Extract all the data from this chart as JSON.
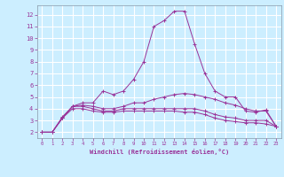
{
  "xlabel": "Windchill (Refroidissement éolien,°C)",
  "background_color": "#cceeff",
  "grid_color": "#aadddd",
  "line_color": "#993399",
  "xlim": [
    -0.5,
    23.5
  ],
  "ylim": [
    1.5,
    12.8
  ],
  "xticks": [
    0,
    1,
    2,
    3,
    4,
    5,
    6,
    7,
    8,
    9,
    10,
    11,
    12,
    13,
    14,
    15,
    16,
    17,
    18,
    19,
    20,
    21,
    22,
    23
  ],
  "yticks": [
    2,
    3,
    4,
    5,
    6,
    7,
    8,
    9,
    10,
    11,
    12
  ],
  "series": [
    [
      2.0,
      2.0,
      3.2,
      4.2,
      4.5,
      4.5,
      5.5,
      5.2,
      5.5,
      6.5,
      8.0,
      11.0,
      11.5,
      12.3,
      12.3,
      9.5,
      7.0,
      5.5,
      5.0,
      5.0,
      3.8,
      3.7,
      3.9,
      2.5
    ],
    [
      2.0,
      2.0,
      3.2,
      4.2,
      4.3,
      4.2,
      4.0,
      4.0,
      4.2,
      4.5,
      4.5,
      4.8,
      5.0,
      5.2,
      5.3,
      5.2,
      5.0,
      4.8,
      4.5,
      4.3,
      4.0,
      3.8,
      3.8,
      2.5
    ],
    [
      2.0,
      2.0,
      3.3,
      4.2,
      4.2,
      4.0,
      3.8,
      3.8,
      4.0,
      4.0,
      4.0,
      4.0,
      4.0,
      4.0,
      4.0,
      4.0,
      3.8,
      3.5,
      3.3,
      3.2,
      3.0,
      3.0,
      3.0,
      2.5
    ],
    [
      2.0,
      2.0,
      3.2,
      4.0,
      4.0,
      3.8,
      3.7,
      3.7,
      3.8,
      3.8,
      3.8,
      3.8,
      3.8,
      3.8,
      3.7,
      3.7,
      3.5,
      3.2,
      3.0,
      2.9,
      2.8,
      2.8,
      2.7,
      2.5
    ]
  ]
}
